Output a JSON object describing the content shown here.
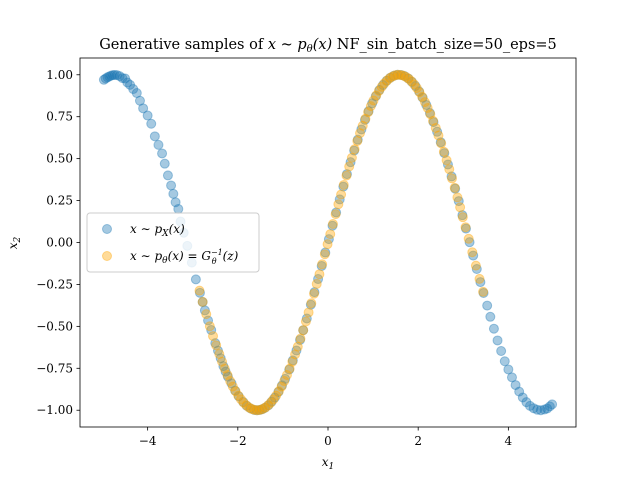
{
  "chart_data": {
    "type": "scatter",
    "title_prefix": "Generative samples of ",
    "title_math": "x ~ p",
    "title_sub": "θ",
    "title_math_end": "(x)",
    "title_suffix": " NF_sin_batch_size=50_eps=5",
    "xlabel": "x",
    "xlabel_sub": "1",
    "ylabel": "x",
    "ylabel_sub": "2",
    "xlim": [
      -5.5,
      5.5
    ],
    "ylim": [
      -1.1,
      1.1
    ],
    "xticks": [
      -4,
      -2,
      0,
      2,
      4
    ],
    "yticks": [
      -1.0,
      -0.75,
      -0.5,
      -0.25,
      0.0,
      0.25,
      0.5,
      0.75,
      1.0
    ],
    "xtick_labels": [
      "−4",
      "−2",
      "0",
      "2",
      "4"
    ],
    "ytick_labels": [
      "−1.00",
      "−0.75",
      "−0.50",
      "−0.25",
      "0.00",
      "0.25",
      "0.50",
      "0.75",
      "1.00"
    ],
    "grid": false,
    "legend_position": "center-left",
    "series": [
      {
        "label": "x ~ p_X(x)",
        "color": "#1f77b4",
        "alpha": 0.4,
        "x": [
          -4.97,
          -4.93,
          -4.89,
          -4.85,
          -4.81,
          -4.77,
          -4.73,
          -4.68,
          -4.62,
          -4.56,
          -4.5,
          -4.45,
          -4.39,
          -4.32,
          -4.24,
          -4.17,
          -4.1,
          -4.0,
          -3.92,
          -3.84,
          -3.76,
          -3.68,
          -3.62,
          -3.55,
          -3.48,
          -3.43,
          -3.38,
          -3.32,
          -3.27,
          -3.2,
          -3.12,
          -3.02,
          -2.93,
          -2.84,
          -2.78,
          -2.73,
          -2.66,
          -2.59,
          -2.5,
          -2.44,
          -2.38,
          -2.32,
          -2.27,
          -2.22,
          -2.14,
          -2.06,
          -1.98,
          -1.88,
          -1.8,
          -1.72,
          -1.64,
          -1.58,
          -1.52,
          -1.46,
          -1.4,
          -1.32,
          -1.25,
          -1.18,
          -1.1,
          -1.02,
          -0.95,
          -0.86,
          -0.78,
          -0.7,
          -0.62,
          -0.55,
          -0.47,
          -0.38,
          -0.3,
          -0.22,
          -0.14,
          -0.06,
          0.02,
          0.1,
          0.18,
          0.26,
          0.34,
          0.42,
          0.5,
          0.58,
          0.66,
          0.74,
          0.82,
          0.9,
          0.98,
          1.06,
          1.14,
          1.22,
          1.3,
          1.38,
          1.46,
          1.54,
          1.62,
          1.7,
          1.78,
          1.86,
          1.94,
          2.02,
          2.1,
          2.18,
          2.26,
          2.34,
          2.42,
          2.5,
          2.58,
          2.66,
          2.74,
          2.82,
          2.9,
          2.98,
          3.06,
          3.14,
          3.22,
          3.3,
          3.38,
          3.45,
          3.53,
          3.6,
          3.68,
          3.76,
          3.84,
          3.92,
          4.0,
          4.08,
          4.16,
          4.24,
          4.32,
          4.4,
          4.48,
          4.56,
          4.64,
          4.72,
          4.8,
          4.86,
          4.92,
          4.97
        ],
        "y": [
          0.97,
          0.978,
          0.985,
          0.99,
          0.995,
          0.998,
          0.999,
          0.998,
          0.992,
          0.98,
          0.978,
          0.954,
          0.94,
          0.915,
          0.891,
          0.845,
          0.8,
          0.757,
          0.708,
          0.633,
          0.582,
          0.531,
          0.47,
          0.4,
          0.34,
          0.29,
          0.24,
          0.2,
          0.125,
          0.058,
          -0.02,
          -0.12,
          -0.22,
          -0.3,
          -0.355,
          -0.405,
          -0.465,
          -0.522,
          -0.6,
          -0.645,
          -0.69,
          -0.737,
          -0.77,
          -0.8,
          -0.84,
          -0.883,
          -0.917,
          -0.951,
          -0.974,
          -0.989,
          -0.998,
          -1.0,
          -0.999,
          -0.994,
          -0.986,
          -0.97,
          -0.949,
          -0.925,
          -0.891,
          -0.852,
          -0.813,
          -0.758,
          -0.703,
          -0.644,
          -0.581,
          -0.523,
          -0.453,
          -0.371,
          -0.296,
          -0.218,
          -0.14,
          -0.06,
          0.02,
          0.1,
          0.179,
          0.257,
          0.333,
          0.408,
          0.479,
          0.548,
          0.613,
          0.674,
          0.731,
          0.783,
          0.83,
          0.872,
          0.909,
          0.939,
          0.964,
          0.982,
          0.994,
          1.0,
          0.999,
          0.992,
          0.978,
          0.958,
          0.933,
          0.901,
          0.863,
          0.82,
          0.772,
          0.718,
          0.66,
          0.598,
          0.533,
          0.465,
          0.394,
          0.321,
          0.247,
          0.163,
          0.083,
          0.002,
          -0.078,
          -0.158,
          -0.236,
          -0.301,
          -0.376,
          -0.443,
          -0.514,
          -0.584,
          -0.647,
          -0.708,
          -0.757,
          -0.804,
          -0.85,
          -0.889,
          -0.924,
          -0.952,
          -0.974,
          -0.988,
          -0.997,
          -1.0,
          -0.996,
          -0.99,
          -0.977,
          -0.965
        ]
      },
      {
        "label": "x ~ p_θ(x) = G_θ^{-1}(z)",
        "color": "#ffa500",
        "alpha": 0.4,
        "x": [
          -2.85,
          -2.78,
          -2.7,
          -2.62,
          -2.55,
          -2.48,
          -2.41,
          -2.35,
          -2.29,
          -2.23,
          -2.17,
          -2.11,
          -2.05,
          -1.99,
          -1.93,
          -1.87,
          -1.81,
          -1.75,
          -1.69,
          -1.63,
          -1.57,
          -1.51,
          -1.45,
          -1.39,
          -1.33,
          -1.27,
          -1.21,
          -1.15,
          -1.09,
          -1.03,
          -0.97,
          -0.91,
          -0.85,
          -0.79,
          -0.73,
          -0.67,
          -0.61,
          -0.55,
          -0.49,
          -0.43,
          -0.37,
          -0.31,
          -0.25,
          -0.19,
          -0.13,
          -0.07,
          -0.01,
          0.05,
          0.11,
          0.17,
          0.23,
          0.29,
          0.35,
          0.41,
          0.47,
          0.53,
          0.59,
          0.65,
          0.71,
          0.77,
          0.83,
          0.89,
          0.95,
          1.01,
          1.07,
          1.13,
          1.19,
          1.25,
          1.31,
          1.37,
          1.43,
          1.49,
          1.55,
          1.61,
          1.67,
          1.73,
          1.79,
          1.85,
          1.91,
          1.97,
          2.03,
          2.09,
          2.15,
          2.21,
          2.27,
          2.33,
          2.39,
          2.45,
          2.51,
          2.57,
          2.63,
          2.69,
          2.75,
          2.81,
          2.87,
          2.93,
          2.99,
          3.05,
          3.12,
          3.2,
          3.28,
          3.36,
          3.44
        ],
        "y": [
          -0.287,
          -0.354,
          -0.427,
          -0.499,
          -0.558,
          -0.613,
          -0.665,
          -0.711,
          -0.752,
          -0.79,
          -0.826,
          -0.859,
          -0.887,
          -0.913,
          -0.935,
          -0.955,
          -0.971,
          -0.984,
          -0.993,
          -0.998,
          -1.0,
          -0.998,
          -0.993,
          -0.984,
          -0.971,
          -0.955,
          -0.935,
          -0.913,
          -0.887,
          -0.859,
          -0.826,
          -0.79,
          -0.752,
          -0.711,
          -0.667,
          -0.621,
          -0.573,
          -0.523,
          -0.471,
          -0.417,
          -0.362,
          -0.305,
          -0.247,
          -0.189,
          -0.13,
          -0.07,
          -0.01,
          0.05,
          0.11,
          0.169,
          0.228,
          0.286,
          0.343,
          0.399,
          0.453,
          0.505,
          0.556,
          0.605,
          0.652,
          0.696,
          0.738,
          0.777,
          0.813,
          0.847,
          0.877,
          0.904,
          0.928,
          0.949,
          0.966,
          0.98,
          0.99,
          0.997,
          1.0,
          0.999,
          0.995,
          0.987,
          0.976,
          0.961,
          0.943,
          0.921,
          0.896,
          0.868,
          0.837,
          0.802,
          0.765,
          0.725,
          0.683,
          0.638,
          0.591,
          0.541,
          0.49,
          0.437,
          0.382,
          0.326,
          0.269,
          0.21,
          0.151,
          0.091,
          0.022,
          -0.058,
          -0.138,
          -0.217,
          -0.294
        ]
      }
    ]
  }
}
